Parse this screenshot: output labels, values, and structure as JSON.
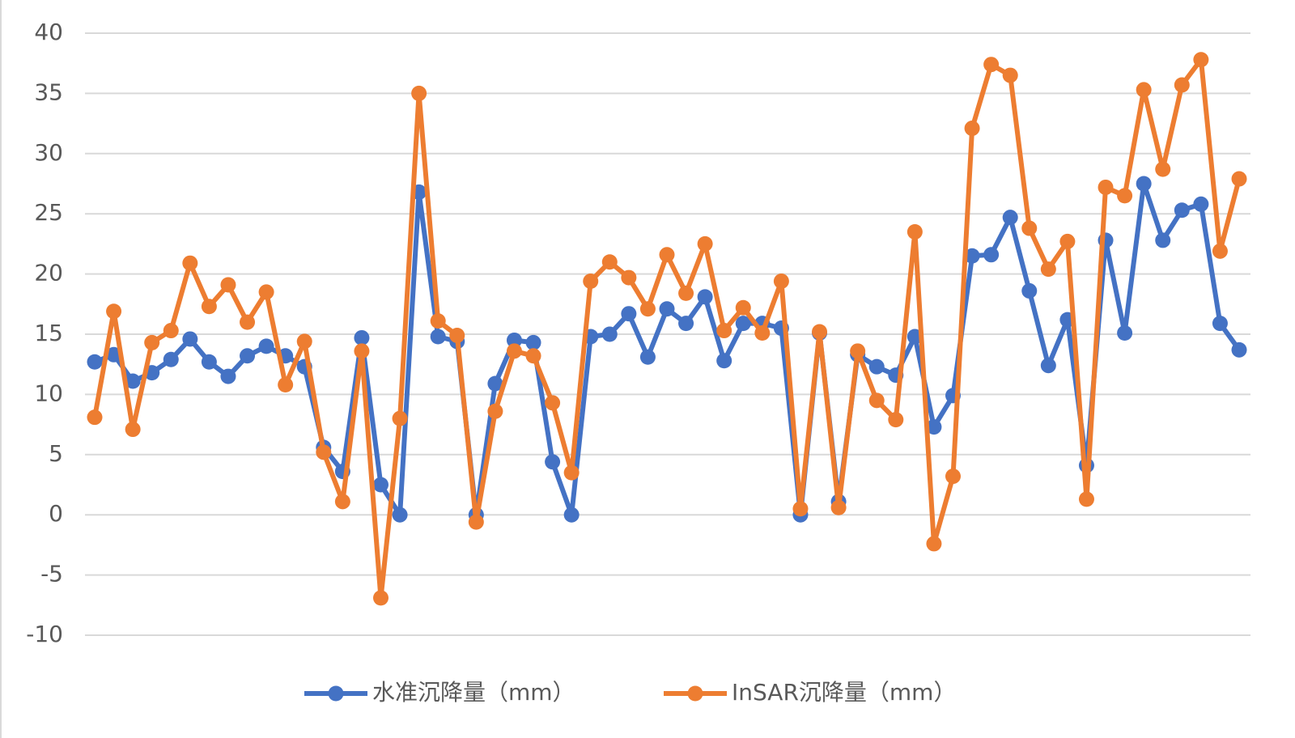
{
  "chart_data": {
    "type": "line",
    "categories": [
      null,
      null,
      null,
      null,
      null,
      null,
      null,
      null,
      null,
      null,
      null,
      null,
      null,
      null,
      null,
      null,
      null,
      null,
      null,
      null,
      null,
      null,
      null,
      null,
      null,
      null,
      null,
      null,
      null,
      null,
      null,
      null,
      null,
      null,
      null,
      null,
      null,
      null,
      null,
      null,
      null,
      null,
      null,
      null,
      null,
      null,
      null,
      null,
      null,
      null,
      null,
      null,
      null,
      null,
      null,
      null,
      null,
      null,
      null,
      null,
      null
    ],
    "series": [
      {
        "name": "水准沉降量（mm）",
        "color": "#4472c4",
        "values": [
          12.7,
          13.3,
          11.1,
          11.8,
          12.9,
          14.6,
          12.7,
          11.5,
          13.2,
          14.0,
          13.2,
          12.3,
          5.6,
          3.6,
          14.7,
          2.5,
          0,
          26.8,
          14.8,
          14.4,
          0,
          10.9,
          14.5,
          14.3,
          4.4,
          0,
          14.8,
          15.0,
          16.7,
          13.1,
          17.1,
          15.9,
          18.1,
          12.8,
          15.9,
          15.9,
          15.5,
          0,
          15.1,
          1.1,
          13.3,
          12.3,
          11.6,
          14.8,
          7.3,
          9.9,
          21.5,
          21.6,
          24.7,
          18.6,
          12.4,
          16.2,
          4.1,
          22.8,
          15.1,
          27.5,
          22.8,
          25.3,
          25.8,
          15.9,
          13.7
        ]
      },
      {
        "name": "InSAR沉降量（mm）",
        "color": "#ed7d31",
        "values": [
          8.1,
          16.9,
          7.1,
          14.3,
          15.3,
          20.9,
          17.3,
          19.1,
          16.0,
          18.5,
          10.8,
          14.4,
          5.2,
          1.1,
          13.6,
          -6.9,
          8.0,
          35.0,
          16.1,
          14.9,
          -0.6,
          8.6,
          13.6,
          13.2,
          9.3,
          3.5,
          19.4,
          21.0,
          19.7,
          17.1,
          21.6,
          18.4,
          22.5,
          15.3,
          17.2,
          15.1,
          19.4,
          0.5,
          15.2,
          0.6,
          13.6,
          9.5,
          7.9,
          23.5,
          -2.4,
          3.2,
          32.1,
          37.4,
          36.5,
          23.8,
          20.4,
          22.7,
          1.3,
          27.2,
          26.5,
          35.3,
          28.7,
          35.7,
          37.8,
          21.9,
          27.9
        ]
      }
    ],
    "ylim": [
      -10,
      40
    ],
    "yticks": [
      -10,
      -5,
      0,
      5,
      10,
      15,
      20,
      25,
      30,
      35,
      40
    ],
    "grid": true,
    "legend": "bottom"
  }
}
